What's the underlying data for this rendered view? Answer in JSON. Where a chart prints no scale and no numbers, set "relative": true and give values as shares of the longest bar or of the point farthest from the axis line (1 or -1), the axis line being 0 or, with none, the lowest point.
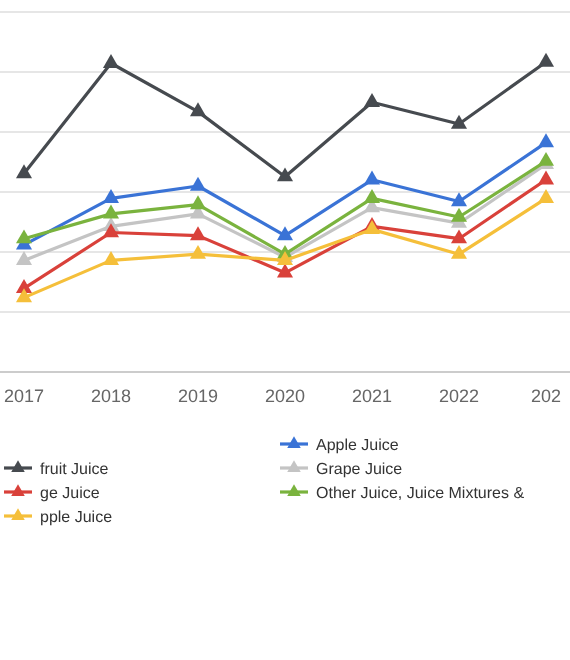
{
  "chart_data": {
    "type": "line",
    "relative": true,
    "categories": [
      "2017",
      "2018",
      "2019",
      "2020",
      "2021",
      "2022",
      "202"
    ],
    "series": [
      {
        "name": "Apple Juice",
        "color": "#3a73d6",
        "values": [
          0.41,
          0.56,
          0.6,
          0.44,
          0.62,
          0.55,
          0.74
        ]
      },
      {
        "name": "Grape Juice",
        "color": "#c4c4c4",
        "values": [
          0.36,
          0.47,
          0.51,
          0.37,
          0.53,
          0.48,
          0.67
        ]
      },
      {
        "name": "Other Juice, Juice Mixtures &",
        "color": "#7ab33e",
        "values": [
          0.43,
          0.51,
          0.54,
          0.38,
          0.56,
          0.5,
          0.68
        ]
      },
      {
        "name": "fruit Juice",
        "color": "#464a4f",
        "values": [
          0.64,
          0.996,
          0.84,
          0.63,
          0.87,
          0.8,
          1
        ]
      },
      {
        "name": "ge Juice",
        "color": "#d9413a",
        "values": [
          0.27,
          0.45,
          0.44,
          0.32,
          0.47,
          0.43,
          0.62
        ]
      },
      {
        "name": "pple Juice",
        "color": "#f5bf3a",
        "values": [
          0.24,
          0.36,
          0.38,
          0.36,
          0.46,
          0.38,
          0.56
        ]
      }
    ],
    "grid": true,
    "legend": "bottom",
    "marker": "triangle",
    "line_style": "solid"
  }
}
